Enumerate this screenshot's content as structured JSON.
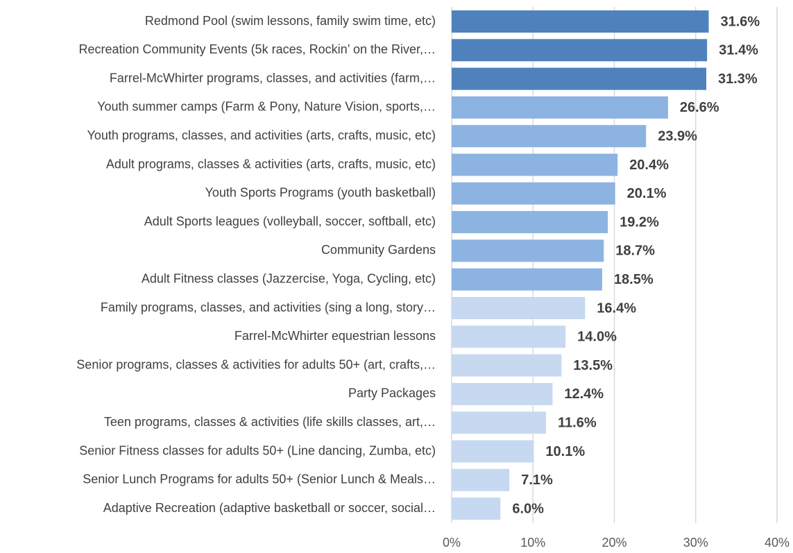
{
  "chart_data": {
    "type": "bar",
    "orientation": "horizontal",
    "categories": [
      "Redmond Pool (swim lessons, family swim time, etc)",
      "Recreation Community Events (5k races, Rockin’ on the River,…",
      "Farrel-McWhirter programs, classes, and activities (farm,…",
      "Youth summer camps (Farm & Pony, Nature Vision, sports,…",
      "Youth programs, classes, and activities (arts, crafts, music, etc)",
      "Adult programs, classes & activities (arts, crafts, music, etc)",
      "Youth Sports Programs (youth basketball)",
      "Adult Sports leagues (volleyball, soccer, softball, etc)",
      "Community Gardens",
      "Adult Fitness classes (Jazzercise, Yoga, Cycling, etc)",
      "Family programs, classes, and activities (sing a long, story…",
      "Farrel-McWhirter equestrian lessons",
      "Senior programs, classes & activities for adults 50+ (art, crafts,…",
      "Party Packages",
      "Teen programs, classes & activities (life skills classes, art,…",
      "Senior Fitness classes for adults 50+ (Line dancing, Zumba, etc)",
      "Senior Lunch Programs for adults 50+ (Senior Lunch & Meals…",
      "Adaptive Recreation (adaptive basketball or soccer, social…"
    ],
    "values": [
      31.6,
      31.4,
      31.3,
      26.6,
      23.9,
      20.4,
      20.1,
      19.2,
      18.7,
      18.5,
      16.4,
      14.0,
      13.5,
      12.4,
      11.6,
      10.1,
      7.1,
      6.0
    ],
    "value_labels": [
      "31.6%",
      "31.4%",
      "31.3%",
      "26.6%",
      "23.9%",
      "20.4%",
      "20.1%",
      "19.2%",
      "18.7%",
      "18.5%",
      "16.4%",
      "14.0%",
      "13.5%",
      "12.4%",
      "11.6%",
      "10.1%",
      "7.1%",
      "6.0%"
    ],
    "colors": [
      "#4f81bd",
      "#4f81bd",
      "#4f81bd",
      "#8db3e2",
      "#8db3e2",
      "#8db3e2",
      "#8db3e2",
      "#8db3e2",
      "#8db3e2",
      "#8db3e2",
      "#c6d9f1",
      "#c6d9f1",
      "#c6d9f1",
      "#c6d9f1",
      "#c6d9f1",
      "#c6d9f1",
      "#c6d9f1",
      "#c6d9f1"
    ],
    "xlim": [
      0,
      40
    ],
    "xticks": [
      {
        "value": 0,
        "label": "0%"
      },
      {
        "value": 10,
        "label": "10%"
      },
      {
        "value": 20,
        "label": "20%"
      },
      {
        "value": 30,
        "label": "30%"
      },
      {
        "value": 40,
        "label": "40%"
      }
    ],
    "grid": true
  }
}
